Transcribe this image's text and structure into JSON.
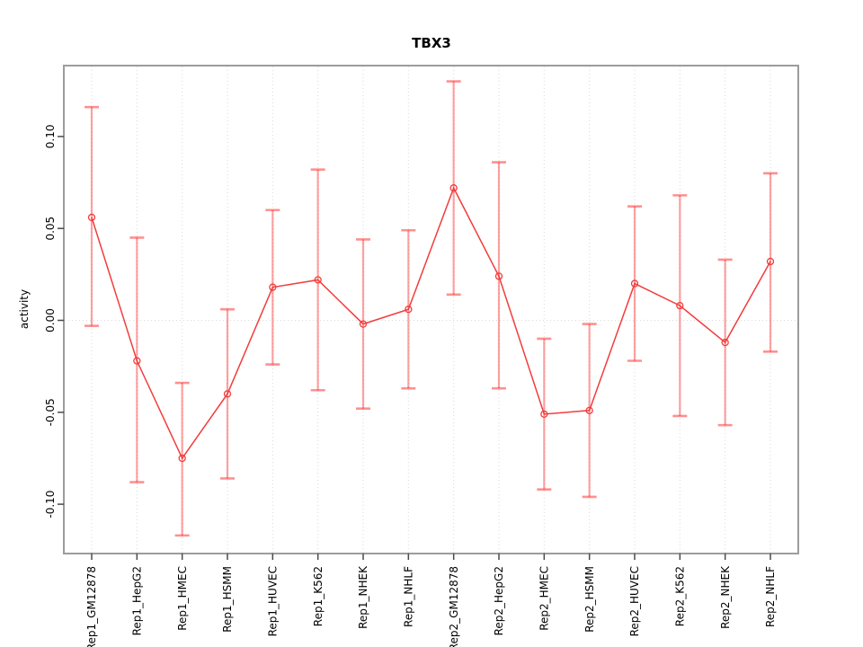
{
  "title": "TBX3",
  "chart_data": {
    "type": "line",
    "title": "TBX3",
    "xlabel": "",
    "ylabel": "activity",
    "categories": [
      "Rep1_GM12878",
      "Rep1_HepG2",
      "Rep1_HMEC",
      "Rep1_HSMM",
      "Rep1_HUVEC",
      "Rep1_K562",
      "Rep1_NHEK",
      "Rep1_NHLF",
      "Rep2_GM12878",
      "Rep2_HepG2",
      "Rep2_HMEC",
      "Rep2_HSMM",
      "Rep2_HUVEC",
      "Rep2_K562",
      "Rep2_NHEK",
      "Rep2_NHLF"
    ],
    "series": [
      {
        "name": "activity",
        "values": [
          0.056,
          -0.022,
          -0.075,
          -0.04,
          0.018,
          0.022,
          -0.002,
          0.006,
          0.072,
          0.024,
          -0.051,
          -0.049,
          0.02,
          0.008,
          -0.012,
          0.032
        ],
        "error_upper": [
          0.116,
          0.045,
          -0.034,
          0.006,
          0.06,
          0.082,
          0.044,
          0.049,
          0.13,
          0.086,
          -0.01,
          -0.002,
          0.062,
          0.068,
          0.033,
          0.08
        ],
        "error_lower": [
          -0.003,
          -0.088,
          -0.117,
          -0.086,
          -0.024,
          -0.038,
          -0.048,
          -0.037,
          0.014,
          -0.037,
          -0.092,
          -0.096,
          -0.022,
          -0.052,
          -0.057,
          -0.017
        ]
      }
    ],
    "yticks": [
      -0.1,
      -0.05,
      0.0,
      0.05,
      0.1
    ],
    "ytick_labels": [
      "-0.10",
      "-0.05",
      "0.00",
      "0.05",
      "0.10"
    ],
    "ylim": [
      -0.127,
      0.139
    ],
    "grid": {
      "vertical_dotted_per_category": true,
      "horizontal_dotted_zero_line": true
    },
    "legend_position": "none",
    "colors": {
      "point_and_line": "#F23C3C",
      "error_bar": "#FF2222",
      "gridline": "#D9D9D9",
      "plot_border": "#9C9C9C",
      "tick": "#4A4A4A",
      "text": "#000000",
      "background": "#FFFFFF"
    }
  }
}
